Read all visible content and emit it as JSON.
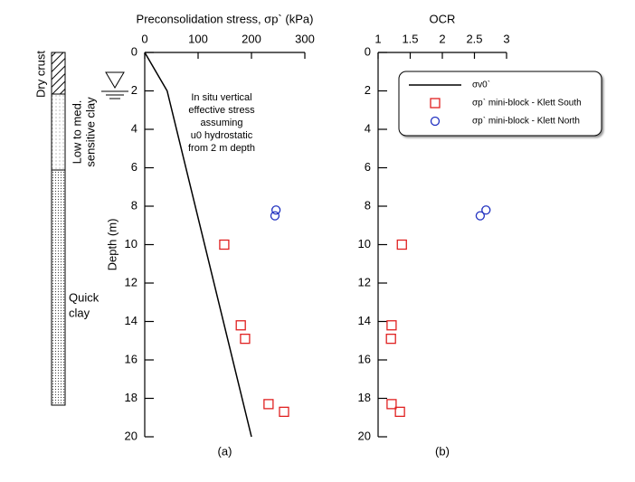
{
  "chart_data": [
    {
      "type": "scatter",
      "title": "Preconsolidation stress, σp` (kPa)",
      "ylabel": "Depth (m)",
      "caption": "(a)",
      "annotation": [
        "In situ vertical",
        "effective stress",
        "assuming",
        "u0 hydrostatic",
        "from 2 m depth"
      ],
      "xlim": [
        0,
        300
      ],
      "xticks": [
        0,
        100,
        200,
        300
      ],
      "ylim": [
        0,
        20
      ],
      "yticks": [
        0,
        2,
        4,
        6,
        8,
        10,
        12,
        14,
        16,
        18,
        20
      ],
      "y_inverted": true,
      "series": [
        {
          "name": "σv0`",
          "type": "line",
          "color": "#000000",
          "x": [
            0,
            42,
            200
          ],
          "y": [
            0,
            2,
            20
          ]
        },
        {
          "name": "σp` mini-block - Klett South",
          "marker": "square",
          "color": "#e02020",
          "x": [
            149,
            180,
            188,
            232,
            261
          ],
          "y": [
            10,
            14.2,
            14.9,
            18.3,
            18.7
          ]
        },
        {
          "name": "σp` mini-block - Klett North",
          "marker": "circle",
          "color": "#2030c0",
          "x": [
            246,
            244
          ],
          "y": [
            8.2,
            8.5
          ]
        }
      ]
    },
    {
      "type": "scatter",
      "title": "OCR",
      "caption": "(b)",
      "legend": "upper right",
      "xlim": [
        1,
        3
      ],
      "xticks": [
        1,
        1.5,
        2,
        2.5,
        3
      ],
      "ylim": [
        0,
        20
      ],
      "yticks": [
        0,
        2,
        4,
        6,
        8,
        10,
        12,
        14,
        16,
        18,
        20
      ],
      "y_inverted": true,
      "series": [
        {
          "name": "σv0`",
          "type": "line",
          "color": "#000000",
          "x": [],
          "y": []
        },
        {
          "name": "σp` mini-block - Klett South",
          "marker": "square",
          "color": "#e02020",
          "x": [
            1.37,
            1.21,
            1.2,
            1.21,
            1.34
          ],
          "y": [
            10,
            14.2,
            14.9,
            18.3,
            18.7
          ]
        },
        {
          "name": "σp` mini-block - Klett North",
          "marker": "circle",
          "color": "#2030c0",
          "x": [
            2.68,
            2.59
          ],
          "y": [
            8.2,
            8.5
          ]
        }
      ]
    }
  ],
  "soil_profile": {
    "dry_crust": "Dry crust",
    "sensitive_clay": [
      "Low to med.",
      "sensitive clay"
    ],
    "quick_clay": [
      "Quick",
      "clay"
    ]
  }
}
